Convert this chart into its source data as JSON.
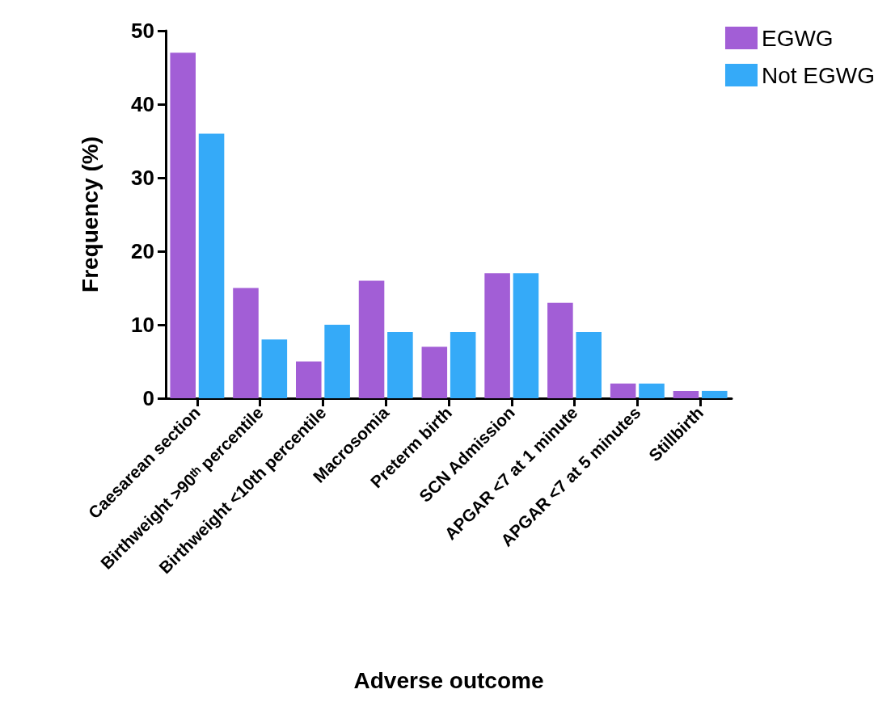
{
  "chart_data": {
    "type": "bar",
    "xlabel": "Adverse outcome",
    "ylabel": "Frequency (%)",
    "categories": [
      "Caesarean section",
      "Birthweight >90ᵗʰ percentile",
      "Birthweight <10th percentile",
      "Macrosomia",
      "Preterm birth",
      "SCN Admission",
      "APGAR <7 at 1 minute",
      "APGAR <7 at 5 minutes",
      "Stillbirth"
    ],
    "series": [
      {
        "name": "EGWG",
        "color": "#a25ed6",
        "values": [
          47,
          15,
          5,
          16,
          7,
          17,
          13,
          2,
          1
        ]
      },
      {
        "name": "Not EGWG",
        "color": "#35aaf8",
        "values": [
          36,
          8,
          10,
          9,
          9,
          17,
          9,
          2,
          1
        ]
      }
    ],
    "ylim": [
      0,
      50
    ],
    "yticks": [
      0,
      10,
      20,
      30,
      40,
      50
    ],
    "grid": false,
    "legend": "top right"
  }
}
